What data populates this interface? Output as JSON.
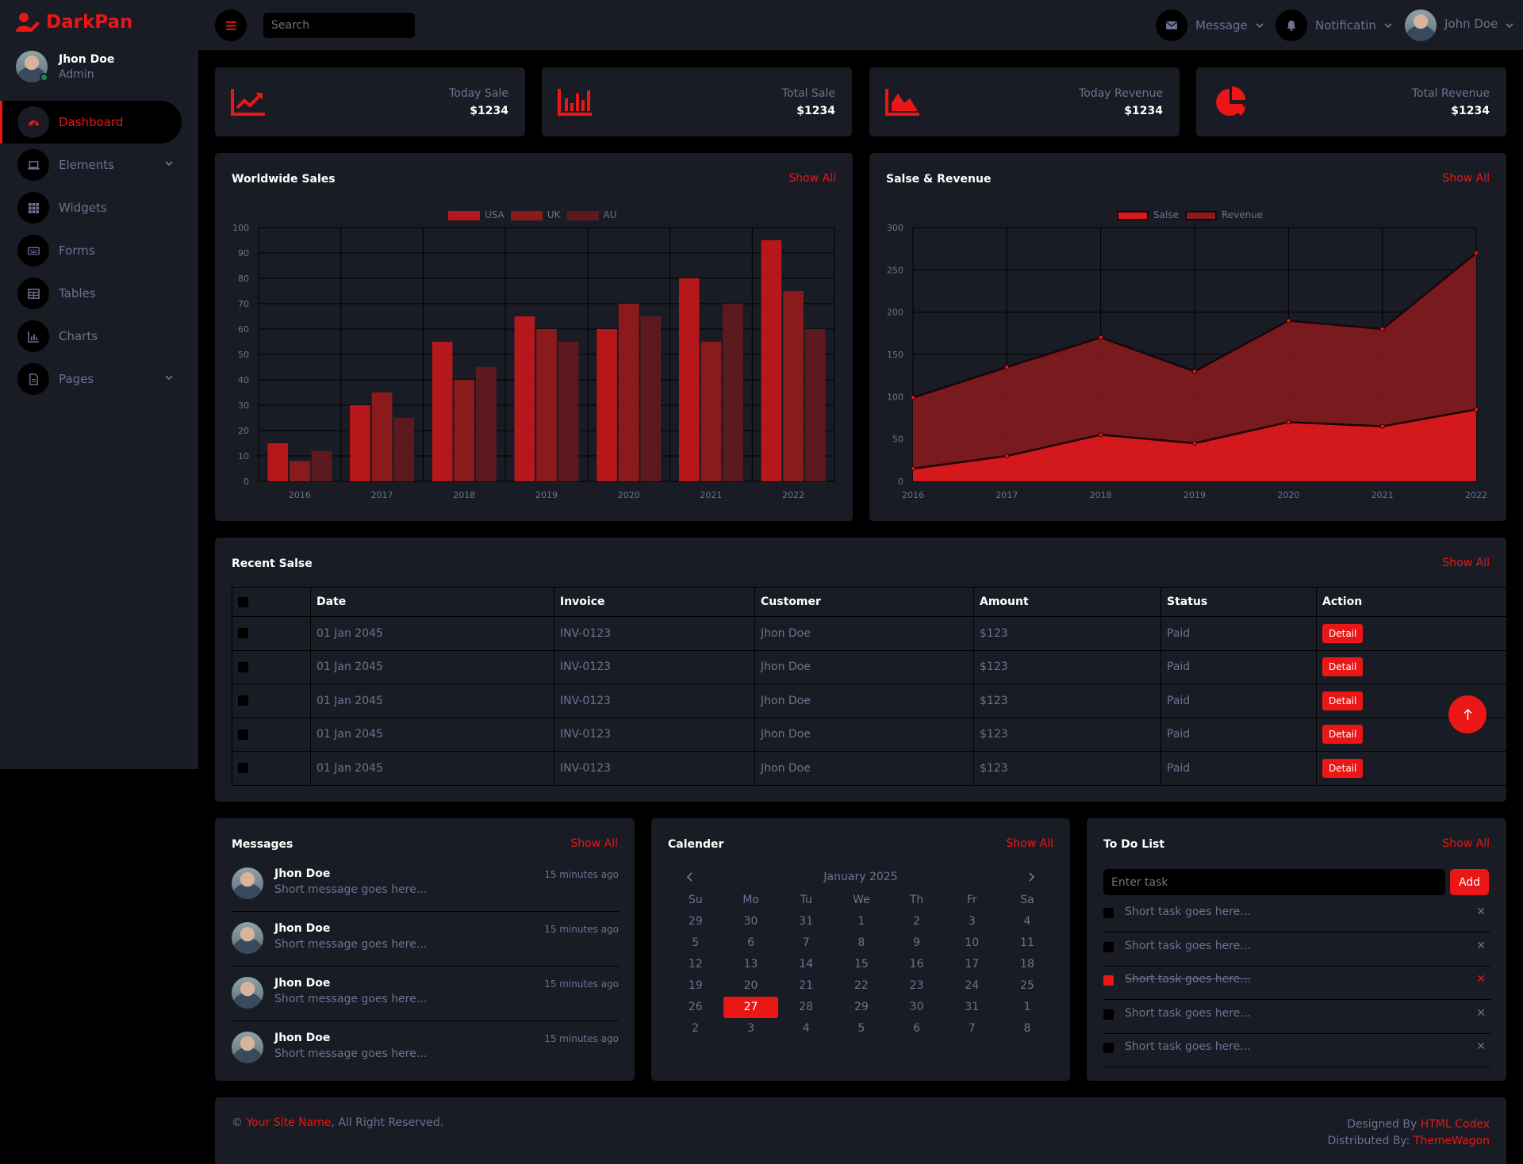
{
  "brand": {
    "name": "DarkPan"
  },
  "profile": {
    "name": "Jhon Doe",
    "role": "Admin"
  },
  "sidebar": {
    "items": [
      {
        "label": "Dashboard",
        "icon": "tachometer-icon",
        "active": true
      },
      {
        "label": "Elements",
        "icon": "laptop-icon",
        "dropdown": true
      },
      {
        "label": "Widgets",
        "icon": "grid-icon"
      },
      {
        "label": "Forms",
        "icon": "keyboard-icon"
      },
      {
        "label": "Tables",
        "icon": "table-icon"
      },
      {
        "label": "Charts",
        "icon": "chart-bar-icon"
      },
      {
        "label": "Pages",
        "icon": "file-icon",
        "dropdown": true
      }
    ]
  },
  "topbar": {
    "search_placeholder": "Search",
    "message_label": "Message",
    "notification_label": "Notificatin",
    "user_label": "John Doe"
  },
  "stats": [
    {
      "label": "Today Sale",
      "value": "$1234",
      "icon": "chart-line-icon"
    },
    {
      "label": "Total Sale",
      "value": "$1234",
      "icon": "chart-bar-icon"
    },
    {
      "label": "Today Revenue",
      "value": "$1234",
      "icon": "chart-area-icon"
    },
    {
      "label": "Total Revenue",
      "value": "$1234",
      "icon": "chart-pie-icon"
    }
  ],
  "worldwide_sales": {
    "title": "Worldwide Sales",
    "show_all": "Show All"
  },
  "sales_revenue": {
    "title": "Salse & Revenue",
    "show_all": "Show All"
  },
  "chart_data": [
    {
      "type": "bar",
      "categories": [
        "2016",
        "2017",
        "2018",
        "2019",
        "2020",
        "2021",
        "2022"
      ],
      "series": [
        {
          "name": "USA",
          "values": [
            15,
            30,
            55,
            65,
            60,
            80,
            95
          ]
        },
        {
          "name": "UK",
          "values": [
            8,
            35,
            40,
            60,
            70,
            55,
            75
          ]
        },
        {
          "name": "AU",
          "values": [
            12,
            25,
            45,
            55,
            65,
            70,
            60
          ]
        }
      ],
      "ylim": [
        0,
        100
      ],
      "yticks": [
        0,
        10,
        20,
        30,
        40,
        50,
        60,
        70,
        80,
        90,
        100
      ],
      "grid": true,
      "legend": "top-center",
      "colors": [
        "#B5171B",
        "#8B1A1D",
        "#5C1A1F"
      ]
    },
    {
      "type": "area",
      "categories": [
        "2016",
        "2017",
        "2018",
        "2019",
        "2020",
        "2021",
        "2022"
      ],
      "series": [
        {
          "name": "Salse",
          "values": [
            15,
            30,
            55,
            45,
            70,
            65,
            85
          ]
        },
        {
          "name": "Revenue",
          "values": [
            99,
            135,
            170,
            130,
            190,
            180,
            270
          ]
        }
      ],
      "ylim": [
        0,
        300
      ],
      "yticks": [
        0,
        50,
        100,
        150,
        200,
        250,
        300
      ],
      "grid": true,
      "legend": "top-center",
      "colors": [
        "#D8191C",
        "#8A1A1D"
      ]
    }
  ],
  "recent_sales": {
    "title": "Recent Salse",
    "show_all": "Show All",
    "columns": [
      "Date",
      "Invoice",
      "Customer",
      "Amount",
      "Status",
      "Action"
    ],
    "rows": [
      {
        "date": "01 Jan 2045",
        "invoice": "INV-0123",
        "customer": "Jhon Doe",
        "amount": "$123",
        "status": "Paid",
        "action": "Detail"
      },
      {
        "date": "01 Jan 2045",
        "invoice": "INV-0123",
        "customer": "Jhon Doe",
        "amount": "$123",
        "status": "Paid",
        "action": "Detail"
      },
      {
        "date": "01 Jan 2045",
        "invoice": "INV-0123",
        "customer": "Jhon Doe",
        "amount": "$123",
        "status": "Paid",
        "action": "Detail"
      },
      {
        "date": "01 Jan 2045",
        "invoice": "INV-0123",
        "customer": "Jhon Doe",
        "amount": "$123",
        "status": "Paid",
        "action": "Detail"
      },
      {
        "date": "01 Jan 2045",
        "invoice": "INV-0123",
        "customer": "Jhon Doe",
        "amount": "$123",
        "status": "Paid",
        "action": "Detail"
      }
    ]
  },
  "messages": {
    "title": "Messages",
    "show_all": "Show All",
    "items": [
      {
        "name": "Jhon Doe",
        "time": "15 minutes ago",
        "text": "Short message goes here..."
      },
      {
        "name": "Jhon Doe",
        "time": "15 minutes ago",
        "text": "Short message goes here..."
      },
      {
        "name": "Jhon Doe",
        "time": "15 minutes ago",
        "text": "Short message goes here..."
      },
      {
        "name": "Jhon Doe",
        "time": "15 minutes ago",
        "text": "Short message goes here..."
      }
    ]
  },
  "calendar": {
    "title": "Calender",
    "show_all": "Show All",
    "month": "January 2025",
    "weekdays": [
      "Su",
      "Mo",
      "Tu",
      "We",
      "Th",
      "Fr",
      "Sa"
    ],
    "weeks": [
      [
        "29",
        "30",
        "31",
        "1",
        "2",
        "3",
        "4"
      ],
      [
        "5",
        "6",
        "7",
        "8",
        "9",
        "10",
        "11"
      ],
      [
        "12",
        "13",
        "14",
        "15",
        "16",
        "17",
        "18"
      ],
      [
        "19",
        "20",
        "21",
        "22",
        "23",
        "24",
        "25"
      ],
      [
        "26",
        "27",
        "28",
        "29",
        "30",
        "31",
        "1"
      ],
      [
        "2",
        "3",
        "4",
        "5",
        "6",
        "7",
        "8"
      ]
    ],
    "selected": "27"
  },
  "todo": {
    "title": "To Do List",
    "show_all": "Show All",
    "input_placeholder": "Enter task",
    "add_label": "Add",
    "items": [
      {
        "text": "Short task goes here...",
        "done": false
      },
      {
        "text": "Short task goes here...",
        "done": false
      },
      {
        "text": "Short task goes here...",
        "done": true
      },
      {
        "text": "Short task goes here...",
        "done": false
      },
      {
        "text": "Short task goes here...",
        "done": false
      }
    ]
  },
  "footer": {
    "copyright": "©",
    "site_name": "Your Site Name",
    "rights": ", All Right Reserved.",
    "designed_by": "Designed By",
    "designer": "HTML Codex",
    "distributed_by": "Distributed By:",
    "distributor": "ThemeWagon"
  },
  "colors": {
    "accent": "#EB1616",
    "panel": "#191C24",
    "text": "#6C7293",
    "bg": "#000000"
  }
}
